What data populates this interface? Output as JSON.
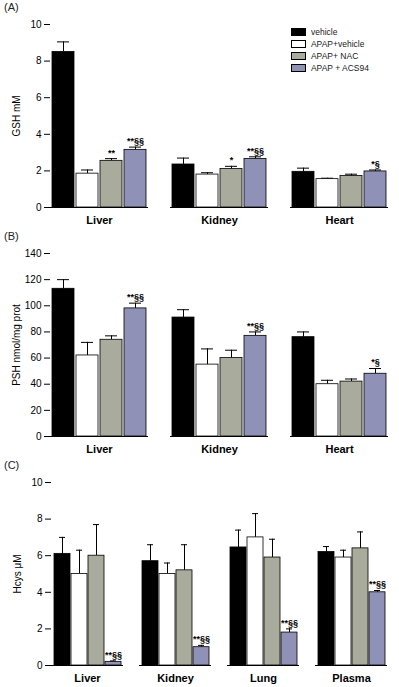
{
  "chart_data": [
    {
      "type": "bar",
      "title": "(A)",
      "y_label": "GSH mM",
      "categories": [
        "Liver",
        "Kidney",
        "Heart"
      ],
      "ylim": [
        0,
        10
      ],
      "yticks": [
        0,
        2,
        4,
        6,
        8,
        10
      ],
      "legend": "top-right",
      "series": [
        {
          "name": "vehicle",
          "color": "#000000",
          "values": [
            8.5,
            2.35,
            1.95
          ],
          "errors": [
            0.55,
            0.35,
            0.2
          ],
          "annotations": [
            null,
            null,
            null
          ]
        },
        {
          "name": "APAP+vehicle",
          "color": "#ffffff",
          "values": [
            1.85,
            1.8,
            1.55
          ],
          "errors": [
            0.2,
            0.1,
            0.05
          ],
          "annotations": [
            null,
            null,
            null
          ]
        },
        {
          "name": "APAP+ NAC",
          "color": "#a9ac9c",
          "values": [
            2.55,
            2.1,
            1.72
          ],
          "errors": [
            0.12,
            0.15,
            0.1
          ],
          "annotations": [
            "**",
            "*",
            null
          ]
        },
        {
          "name": "APAP + ACS94",
          "color": "#8f92b6",
          "values": [
            3.15,
            2.65,
            1.97
          ],
          "errors": [
            0.15,
            0.12,
            0.08
          ],
          "annotations": [
            "**§§",
            "**§§",
            "*§"
          ]
        }
      ]
    },
    {
      "type": "bar",
      "title": "(B)",
      "y_label": "PSH nmol/mg prot",
      "categories": [
        "Liver",
        "Kidney",
        "Heart"
      ],
      "ylim": [
        0,
        140
      ],
      "yticks": [
        0,
        20,
        40,
        60,
        80,
        100,
        120,
        140
      ],
      "series": [
        {
          "name": "vehicle",
          "color": "#000000",
          "values": [
            113,
            91,
            76
          ],
          "errors": [
            7,
            6,
            4
          ],
          "annotations": [
            null,
            null,
            null
          ]
        },
        {
          "name": "APAP+vehicle",
          "color": "#ffffff",
          "values": [
            62,
            55,
            40
          ],
          "errors": [
            10,
            12,
            3
          ],
          "annotations": [
            null,
            null,
            null
          ]
        },
        {
          "name": "APAP+ NAC",
          "color": "#a9ac9c",
          "values": [
            74,
            60,
            42
          ],
          "errors": [
            3,
            6,
            2
          ],
          "annotations": [
            null,
            null,
            null
          ]
        },
        {
          "name": "APAP + ACS94",
          "color": "#8f92b6",
          "values": [
            98,
            77,
            48
          ],
          "errors": [
            4,
            3,
            4
          ],
          "annotations": [
            "**§§",
            "**§§",
            "*§"
          ]
        }
      ]
    },
    {
      "type": "bar",
      "title": "(C)",
      "y_label": "Hcys μM",
      "categories": [
        "Liver",
        "Kidney",
        "Lung",
        "Plasma"
      ],
      "ylim": [
        0,
        10
      ],
      "yticks": [
        0,
        2,
        4,
        6,
        8,
        10
      ],
      "series": [
        {
          "name": "vehicle",
          "color": "#000000",
          "values": [
            6.1,
            5.7,
            6.45,
            6.2
          ],
          "errors": [
            0.9,
            0.9,
            0.95,
            0.3
          ],
          "annotations": [
            null,
            null,
            null,
            null
          ]
        },
        {
          "name": "APAP+vehicle",
          "color": "#ffffff",
          "values": [
            5.0,
            5.0,
            7.0,
            5.9
          ],
          "errors": [
            1.3,
            0.6,
            1.3,
            0.4
          ],
          "annotations": [
            null,
            null,
            null,
            null
          ]
        },
        {
          "name": "APAP+ NAC",
          "color": "#a9ac9c",
          "values": [
            6.0,
            5.2,
            5.9,
            6.4
          ],
          "errors": [
            1.7,
            1.4,
            1.0,
            0.9
          ],
          "annotations": [
            null,
            null,
            null,
            null
          ]
        },
        {
          "name": "APAP + ACS94",
          "color": "#8f92b6",
          "values": [
            0.2,
            1.0,
            1.8,
            4.0
          ],
          "errors": [
            0.05,
            0.1,
            0.2,
            0.1
          ],
          "annotations": [
            "**§§",
            "**§§",
            "**§§",
            "**§§"
          ]
        }
      ]
    }
  ]
}
